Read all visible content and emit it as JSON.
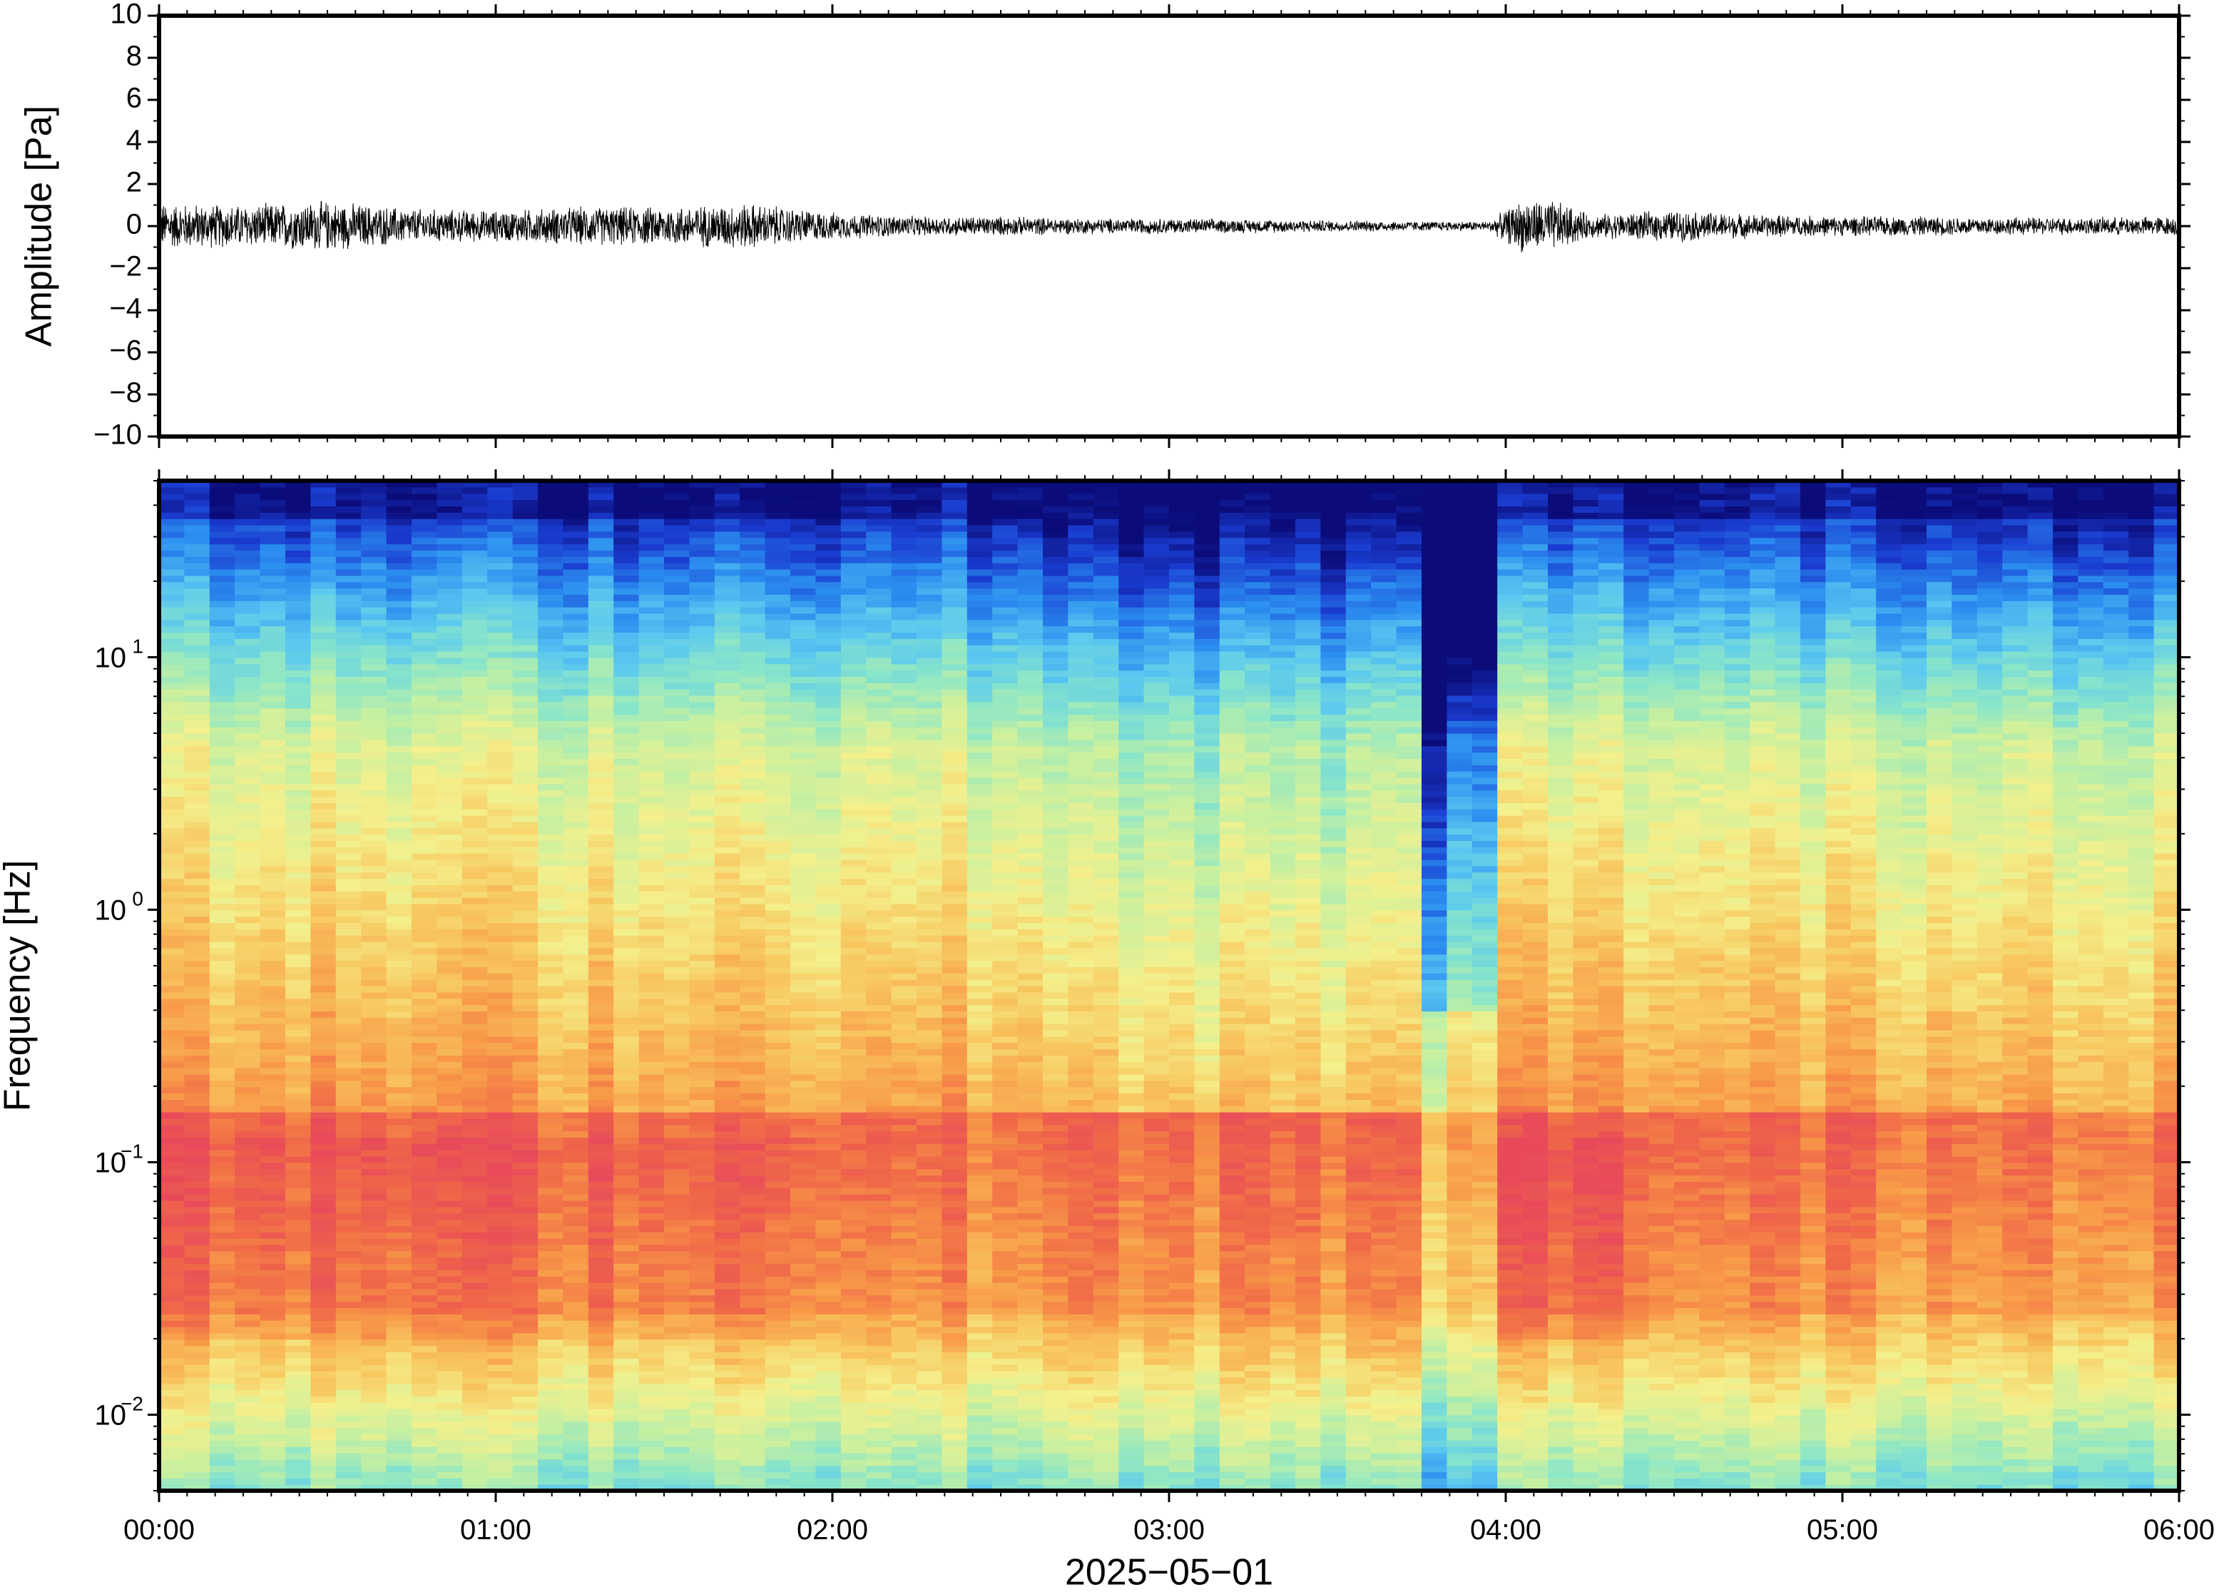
{
  "chart_data": [
    {
      "type": "line",
      "ylabel": "Amplitude [Pa]",
      "ylim": [
        -10,
        10
      ],
      "yticks": [
        -10,
        -8,
        -6,
        -4,
        -2,
        0,
        2,
        4,
        6,
        8,
        10
      ],
      "ytick_labels": [
        "−10",
        "−8",
        "−6",
        "−4",
        "−2",
        "0",
        "2",
        "4",
        "6",
        "8",
        "10"
      ],
      "xlim_hours": [
        0,
        6
      ],
      "series": [
        {
          "envelope_hours": [
            0.0,
            0.25,
            0.5,
            0.75,
            1.0,
            1.25,
            1.5,
            1.75,
            2.0,
            2.25,
            2.5,
            2.75,
            3.0,
            3.25,
            3.5,
            3.75,
            3.95,
            4.05,
            4.15,
            4.25,
            4.5,
            4.75,
            5.0,
            5.25,
            5.5,
            5.75,
            6.0
          ],
          "envelope_amplitude_pa": [
            1.2,
            1.1,
            1.3,
            0.9,
            0.8,
            1.0,
            1.0,
            1.2,
            0.7,
            0.5,
            0.5,
            0.4,
            0.4,
            0.35,
            0.3,
            0.25,
            0.25,
            1.4,
            1.3,
            0.6,
            0.8,
            0.6,
            0.5,
            0.5,
            0.45,
            0.45,
            0.5
          ]
        }
      ]
    },
    {
      "type": "heatmap",
      "ylabel": "Frequency [Hz]",
      "yscale": "log",
      "ylim": [
        0.005,
        50
      ],
      "yticks": [
        0.01,
        0.1,
        1,
        10
      ],
      "ytick_labels": [
        {
          "base": "10",
          "exp": "−2"
        },
        {
          "base": "10",
          "exp": "−1"
        },
        {
          "base": "10",
          "exp": "0"
        },
        {
          "base": "10",
          "exp": "1"
        }
      ],
      "colormap": [
        "#0b0c7a",
        "#1a3cd0",
        "#2b8ef0",
        "#5ac8f0",
        "#8be6c8",
        "#c8f0a0",
        "#f4f08c",
        "#f8c860",
        "#f89a48",
        "#f06848",
        "#e84a5a"
      ],
      "xlim_hours": [
        0,
        6
      ],
      "xticks_hours": [
        0,
        1,
        2,
        3,
        4,
        5,
        6
      ],
      "xtick_labels": [
        "00:00",
        "01:00",
        "02:00",
        "03:00",
        "04:00",
        "05:00",
        "06:00"
      ],
      "xlabel": "2025−05−01",
      "quiet_interval_hours": [
        3.78,
        3.95
      ],
      "notes_levels": "normalized power 0–1 over time and log-frequency"
    }
  ]
}
